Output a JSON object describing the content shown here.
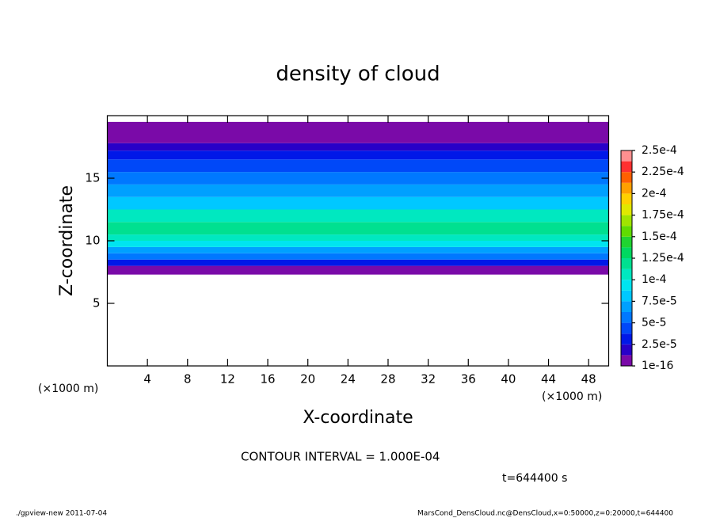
{
  "chart_data": {
    "type": "zprofile",
    "title": "density of cloud",
    "xlabel": "X-coordinate",
    "ylabel": "Z-coordinate",
    "x_unit": "(×1000 m)",
    "y_unit": "(×1000 m)",
    "xlim": [
      0,
      50
    ],
    "xticks": [
      4,
      8,
      12,
      16,
      20,
      24,
      28,
      32,
      36,
      40,
      44,
      48
    ],
    "ylim": [
      0,
      20
    ],
    "yticks": [
      5,
      10,
      15
    ],
    "z_bins": [
      7.3,
      8.0,
      8.5,
      9.0,
      9.5,
      10.0,
      10.5,
      11.5,
      12.5,
      13.5,
      14.5,
      15.5,
      16.5,
      17.2,
      17.8,
      19.5
    ],
    "values": [
      1e-05,
      3e-05,
      5.5e-05,
      7.5e-05,
      9e-05,
      0.000105,
      0.000115,
      0.000105,
      8.5e-05,
      7e-05,
      6e-05,
      5e-05,
      3.5e-05,
      2.5e-05,
      1e-05
    ],
    "colorbar_lim": [
      1e-16,
      0.00025
    ],
    "colorbar_ticks": [
      1e-16,
      {
        "value": 2.5e-05,
        "label": "2.5e-5"
      },
      {
        "value": 5e-05,
        "label": "5e-5"
      },
      {
        "value": 7.5e-05,
        "label": "7.5e-5"
      },
      {
        "value": 0.0001,
        "label": "1e-4"
      },
      {
        "value": 0.000125,
        "label": "1.25e-4"
      },
      {
        "value": 0.00015,
        "label": "1.5e-4"
      },
      {
        "value": 0.000175,
        "label": "1.75e-4"
      },
      {
        "value": 0.0002,
        "label": "2e-4"
      },
      {
        "value": 0.000225,
        "label": "2.25e-4"
      },
      {
        "value": 0.00025,
        "label": "2.5e-4"
      }
    ],
    "colors": [
      "#7a0aa8",
      "#2800c8",
      "#0018e8",
      "#0048f8",
      "#0078ff",
      "#00a0ff",
      "#00c8ff",
      "#00e4f0",
      "#00e8c0",
      "#00e090",
      "#00d860",
      "#20d430",
      "#60dc00",
      "#a0e400",
      "#e0e800",
      "#ffd000",
      "#ffa000",
      "#ff6000",
      "#ff3030",
      "#ff9090"
    ],
    "contour_note": "CONTOUR INTERVAL = 1.000E-04",
    "time_note": "t=644400 s",
    "footer_left": "./gpview-new  2011-07-04",
    "footer_right": "MarsCond_DensCloud.nc@DensCloud,x=0:50000,z=0:20000,t=644400"
  }
}
